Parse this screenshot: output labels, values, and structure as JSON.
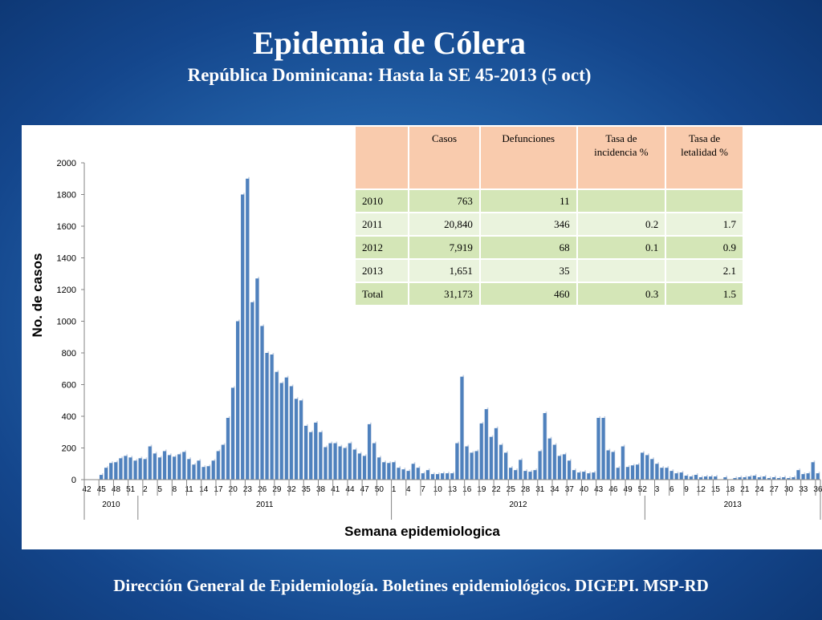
{
  "slide": {
    "title": "Epidemia de Cólera",
    "subtitle": "República Dominicana: Hasta la SE 45-2013 (5 oct)",
    "footer": "Dirección General de Epidemiología. Boletines epidemiológicos. DIGEPI. MSP-RD"
  },
  "table": {
    "headers": [
      "",
      "Casos",
      "Defunciones",
      "Tasa de incidencia %",
      "Tasa de letalidad %"
    ],
    "rows": [
      [
        "2010",
        "763",
        "11",
        "",
        ""
      ],
      [
        "2011",
        "20,840",
        "346",
        "0.2",
        "1.7"
      ],
      [
        "2012",
        "7,919",
        "68",
        "0.1",
        "0.9"
      ],
      [
        "2013",
        "1,651",
        "35",
        "",
        "2.1"
      ],
      [
        "Total",
        "31,173",
        "460",
        "0.3",
        "1.5"
      ]
    ]
  },
  "chart_data": {
    "type": "bar",
    "xlabel": "Semana epidemiologica",
    "ylabel": "No. de casos",
    "ylim": [
      0,
      2000
    ],
    "yticks": [
      0,
      200,
      400,
      600,
      800,
      1000,
      1200,
      1400,
      1600,
      1800,
      2000
    ],
    "color": "#4f81bd",
    "years": [
      {
        "label": "2010",
        "start_week": 42,
        "weeks": 11
      },
      {
        "label": "2011",
        "start_week": 1,
        "weeks": 52
      },
      {
        "label": "2012",
        "start_week": 1,
        "weeks": 52
      },
      {
        "label": "2013",
        "start_week": 1,
        "weeks": 36
      }
    ],
    "tick_labels": [
      "42",
      "45",
      "48",
      "51",
      "2",
      "5",
      "8",
      "11",
      "14",
      "17",
      "20",
      "23",
      "26",
      "29",
      "32",
      "35",
      "38",
      "41",
      "44",
      "47",
      "50",
      "1",
      "4",
      "7",
      "10",
      "13",
      "16",
      "19",
      "22",
      "25",
      "28",
      "31",
      "34",
      "37",
      "40",
      "43",
      "46",
      "49",
      "52",
      "3",
      "6",
      "9",
      "12",
      "15",
      "18",
      "21",
      "24",
      "27",
      "30",
      "33",
      "36"
    ],
    "values": [
      0,
      0,
      0,
      30,
      75,
      105,
      110,
      135,
      150,
      140,
      120,
      135,
      130,
      210,
      165,
      140,
      180,
      155,
      145,
      160,
      175,
      130,
      95,
      120,
      80,
      85,
      120,
      180,
      220,
      390,
      580,
      1000,
      1800,
      1900,
      1120,
      1270,
      970,
      800,
      790,
      680,
      610,
      645,
      590,
      510,
      500,
      340,
      300,
      360,
      300,
      205,
      230,
      230,
      210,
      200,
      230,
      190,
      165,
      150,
      350,
      230,
      140,
      110,
      105,
      110,
      75,
      65,
      55,
      100,
      75,
      40,
      60,
      35,
      35,
      40,
      40,
      40,
      230,
      650,
      210,
      170,
      180,
      355,
      445,
      270,
      325,
      220,
      170,
      75,
      60,
      125,
      55,
      50,
      60,
      180,
      420,
      260,
      220,
      150,
      160,
      120,
      60,
      45,
      50,
      40,
      45,
      390,
      390,
      185,
      175,
      75,
      210,
      80,
      90,
      95,
      170,
      155,
      130,
      100,
      75,
      75,
      55,
      40,
      45,
      25,
      20,
      30,
      15,
      20,
      20,
      20,
      0,
      15,
      0,
      10,
      15,
      15,
      20,
      25,
      15,
      20,
      10,
      15,
      10,
      15,
      10,
      15,
      60,
      35,
      40,
      110,
      40
    ]
  }
}
